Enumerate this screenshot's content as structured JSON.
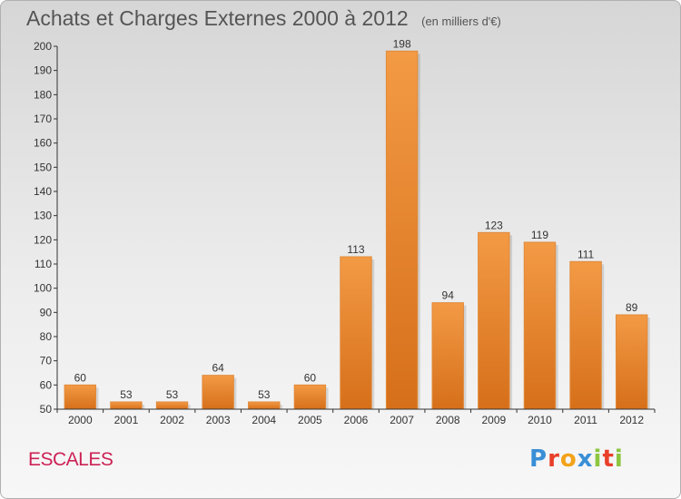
{
  "chart_data": {
    "type": "bar",
    "title": "Achats et Charges Externes 2000 à 2012",
    "subtitle": "(en milliers d'€)",
    "xlabel": "",
    "ylabel": "",
    "categories": [
      "2000",
      "2001",
      "2002",
      "2003",
      "2004",
      "2005",
      "2006",
      "2007",
      "2008",
      "2009",
      "2010",
      "2011",
      "2012"
    ],
    "values": [
      60,
      53,
      53,
      64,
      53,
      60,
      113,
      198,
      94,
      123,
      119,
      111,
      89
    ],
    "ylim": [
      50,
      200
    ],
    "yticks": [
      50,
      60,
      70,
      80,
      90,
      100,
      110,
      120,
      130,
      140,
      150,
      160,
      170,
      180,
      190,
      200
    ],
    "grid": false,
    "bar_color": "#f39a45",
    "bar_color_dark": "#d66f1a"
  },
  "footer": {
    "commune": "ESCALES",
    "logo_letters": [
      {
        "ch": "P",
        "color": "#3a8fd6"
      },
      {
        "ch": "r",
        "color": "#e8402a"
      },
      {
        "ch": "o",
        "color": "#f2a31b"
      },
      {
        "ch": "x",
        "color": "#3a8fd6"
      },
      {
        "ch": "i",
        "color": "#8cc63f"
      },
      {
        "ch": "t",
        "color": "#e8402a"
      },
      {
        "ch": "i",
        "color": "#8cc63f"
      }
    ]
  }
}
